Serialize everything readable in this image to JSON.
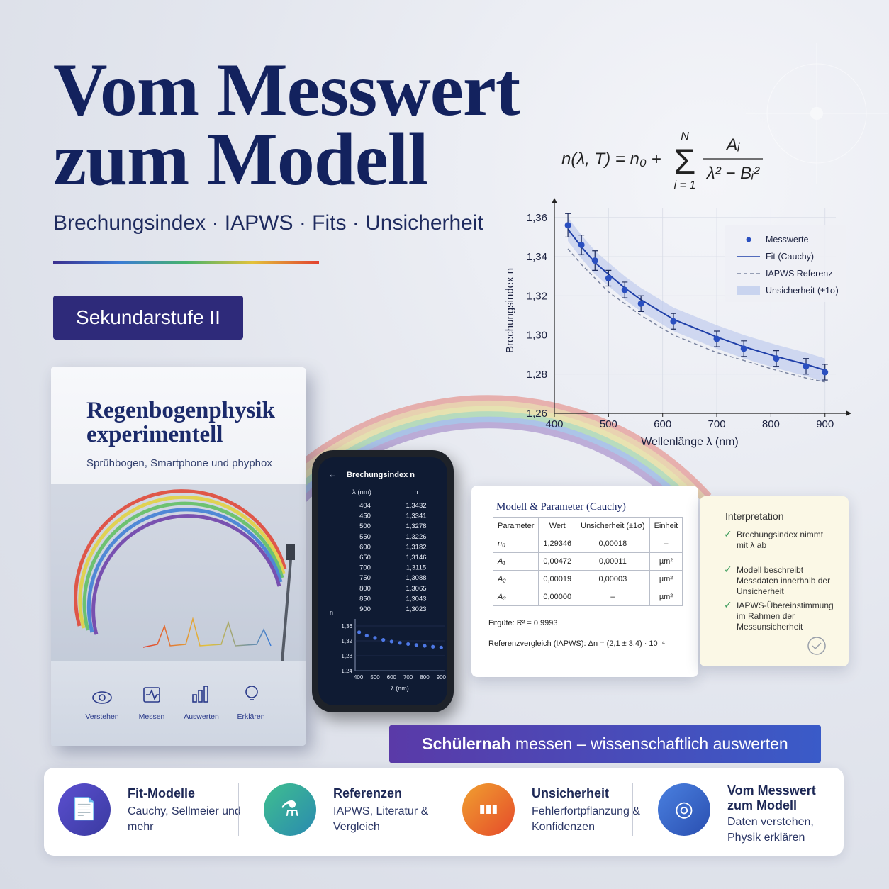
{
  "header": {
    "title_lines": [
      "Vom Messwert",
      "zum Modell"
    ],
    "subtitle": "Brechungsindex · IAPWS · Fits · Unsicherheit",
    "badge": "Sekundarstufe II"
  },
  "formula": {
    "lhs": "n(λ, T) = n₀ +",
    "sum_top": "N",
    "sum": "Σ",
    "sum_bottom": "i = 1",
    "numerator": "Aᵢ",
    "denominator": "λ² − Bᵢ²"
  },
  "chart": {
    "type": "scatter",
    "x_label": "Wellenlänge λ (nm)",
    "y_label": "Brechungsindex n",
    "x": [
      425,
      450,
      475,
      500,
      530,
      560,
      620,
      700,
      750,
      810,
      865,
      900
    ],
    "xlim": [
      400,
      920
    ],
    "xticks": [
      400,
      500,
      600,
      700,
      800,
      900
    ],
    "ylim": [
      1.26,
      1.365
    ],
    "yticks": [
      {
        "value": 1.26,
        "label": "1,26"
      },
      {
        "value": 1.28,
        "label": "1,28"
      },
      {
        "value": 1.3,
        "label": "1,30"
      },
      {
        "value": 1.32,
        "label": "1,32"
      },
      {
        "value": 1.34,
        "label": "1,34"
      },
      {
        "value": 1.36,
        "label": "1,36"
      }
    ],
    "grid": true,
    "legend": "top-right",
    "series": [
      {
        "name": "Messwerte",
        "color": "#2a4fc0",
        "values": [
          1.356,
          1.346,
          1.338,
          1.329,
          1.323,
          1.316,
          1.307,
          1.298,
          1.293,
          1.288,
          1.284,
          1.281
        ],
        "errors": [
          0.006,
          0.005,
          0.005,
          0.004,
          0.004,
          0.004,
          0.004,
          0.004,
          0.004,
          0.004,
          0.004,
          0.004
        ]
      },
      {
        "name": "Fit (Cauchy)",
        "color": "#1f3fa8",
        "values": [
          1.354,
          1.345,
          1.337,
          1.331,
          1.324,
          1.318,
          1.308,
          1.299,
          1.294,
          1.289,
          1.285,
          1.282
        ]
      },
      {
        "name": "IAPWS Referenz",
        "color": "#7a84a0",
        "values": [
          1.344,
          1.336,
          1.329,
          1.322,
          1.316,
          1.31,
          1.3,
          1.291,
          1.287,
          1.282,
          1.278,
          1.276
        ]
      },
      {
        "name": "Unsicherheit (±1σ)",
        "color": "#b9c7ec",
        "high": [
          1.36,
          1.351,
          1.343,
          1.337,
          1.33,
          1.324,
          1.314,
          1.305,
          1.3,
          1.295,
          1.291,
          1.288
        ],
        "low": [
          1.348,
          1.339,
          1.331,
          1.325,
          1.318,
          1.312,
          1.302,
          1.293,
          1.288,
          1.283,
          1.279,
          1.276
        ]
      }
    ]
  },
  "book": {
    "title_lines": [
      "Regenbogenphysik",
      "experimentell"
    ],
    "subtitle": "Sprühbogen, Smartphone und phyphox",
    "icons": [
      "Verstehen",
      "Messen",
      "Auswerten",
      "Erklären"
    ]
  },
  "phone": {
    "title": "Brechungsindex n",
    "headers": [
      "λ (nm)",
      "n"
    ],
    "rows": [
      [
        "404",
        "1,3432"
      ],
      [
        "450",
        "1,3341"
      ],
      [
        "500",
        "1,3278"
      ],
      [
        "550",
        "1,3226"
      ],
      [
        "600",
        "1,3182"
      ],
      [
        "650",
        "1,3146"
      ],
      [
        "700",
        "1,3115"
      ],
      [
        "750",
        "1,3088"
      ],
      [
        "800",
        "1,3065"
      ],
      [
        "850",
        "1,3043"
      ],
      [
        "900",
        "1,3023"
      ]
    ],
    "chart": {
      "y_label": "n",
      "x_label": "λ (nm)",
      "x": [
        404,
        450,
        500,
        550,
        600,
        650,
        700,
        750,
        800,
        850,
        900
      ],
      "values": [
        1.3432,
        1.3341,
        1.3278,
        1.3226,
        1.3182,
        1.3146,
        1.3115,
        1.3088,
        1.3065,
        1.3043,
        1.3023
      ],
      "xlim": [
        380,
        920
      ],
      "xticks": [
        400,
        500,
        600,
        700,
        800,
        900
      ],
      "ylim": [
        1.24,
        1.36
      ],
      "yticks": [
        {
          "value": 1.24,
          "label": "1,24"
        },
        {
          "value": 1.28,
          "label": "1,28"
        },
        {
          "value": 1.32,
          "label": "1,32"
        },
        {
          "value": 1.36,
          "label": "1,36"
        }
      ]
    }
  },
  "model_card": {
    "title": "Modell & Parameter (Cauchy)",
    "headers": [
      "Parameter",
      "Wert",
      "Unsicherheit (±1σ)",
      "Einheit"
    ],
    "rows": [
      [
        "n₀",
        "1,29346",
        "0,00018",
        "–"
      ],
      [
        "A₁",
        "0,00472",
        "0,00011",
        "µm²"
      ],
      [
        "A₂",
        "0,00019",
        "0,00003",
        "µm²"
      ],
      [
        "A₃",
        "0,00000",
        "–",
        "µm²"
      ]
    ],
    "fit": "Fitgüte: R² = 0,9993",
    "reference": "Referenzvergleich (IAPWS): Δn = (2,1 ± 3,4) · 10⁻⁴"
  },
  "interpretation": {
    "title": "Interpretation",
    "items": [
      "Brechungsindex nimmt mit λ ab",
      "Modell beschreibt Messdaten innerhalb der Unsicherheit",
      "IAPWS-Übereinstimmung im Rahmen der Messunsicherheit"
    ]
  },
  "banner": {
    "bold": "Schülernah",
    "rest": "messen – wissenschaftlich auswerten"
  },
  "features": [
    {
      "title": "Fit-Modelle",
      "text": "Cauchy, Sellmeier und mehr"
    },
    {
      "title": "Referenzen",
      "text": "IAPWS, Literatur & Vergleich"
    },
    {
      "title": "Unsicherheit",
      "text": "Fehlerfortpflanzung & Konfidenzen"
    },
    {
      "title": "Vom Messwert zum Modell",
      "text": "Daten verstehen, Physik erklären"
    }
  ]
}
